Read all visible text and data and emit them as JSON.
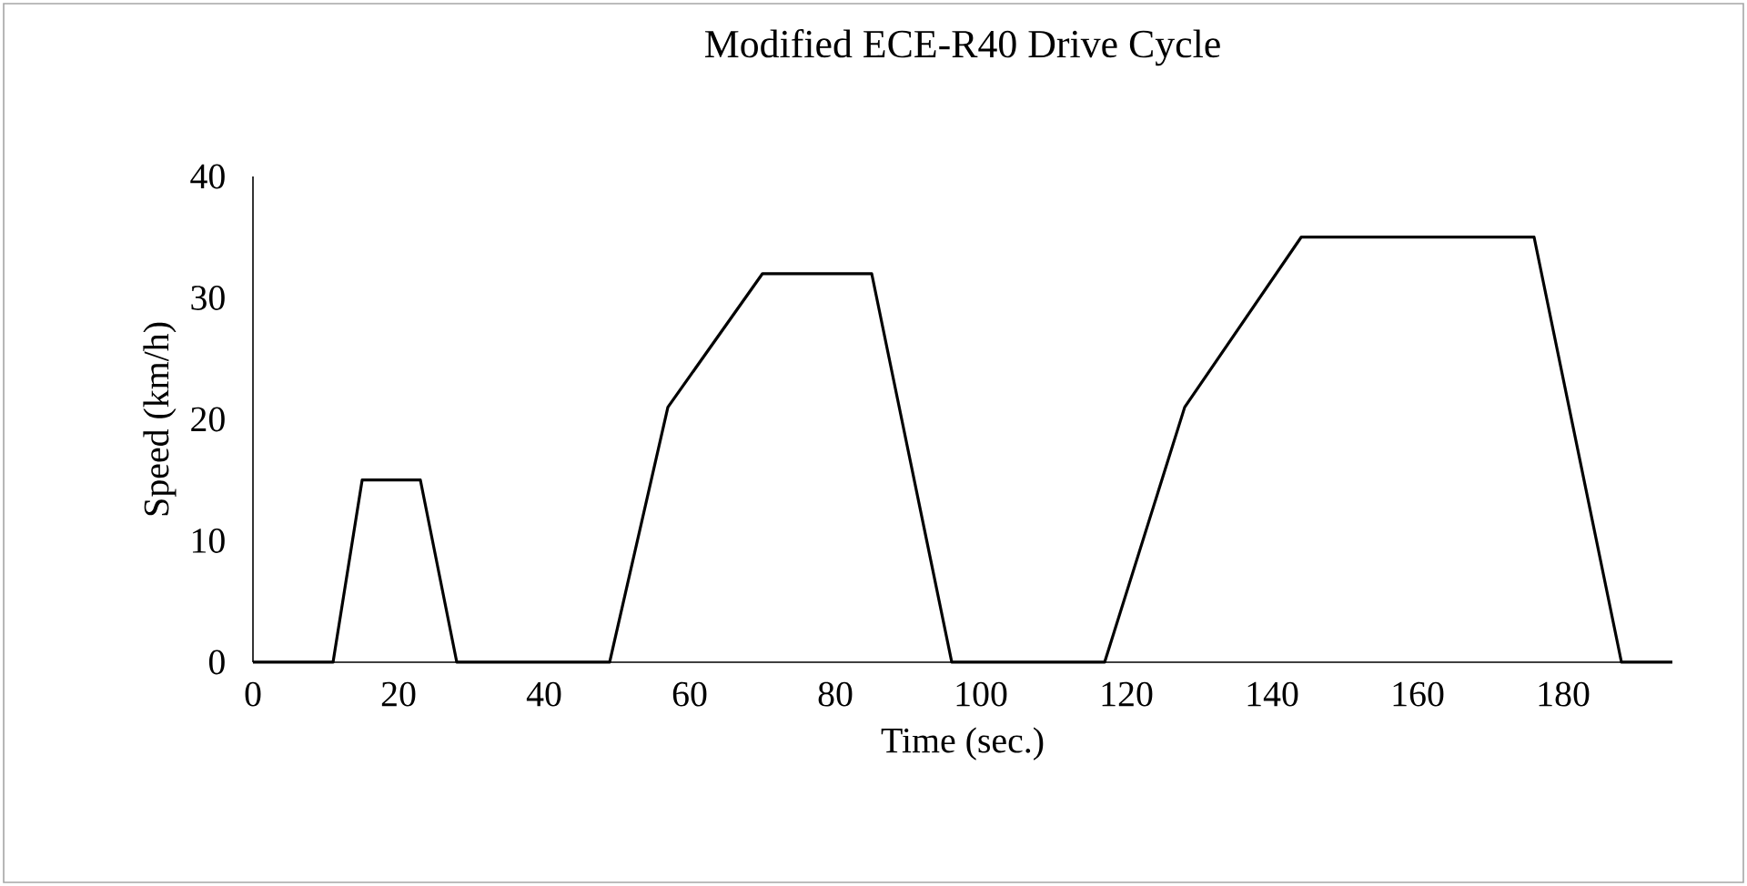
{
  "chart_data": {
    "type": "line",
    "title": "Modified ECE-R40 Drive Cycle",
    "xlabel": "Time (sec.)",
    "ylabel": "Speed (km/h)",
    "x": [
      0,
      11,
      15,
      23,
      28,
      49,
      57,
      70,
      85,
      96,
      117,
      128,
      144,
      176,
      188,
      195
    ],
    "series": [
      {
        "color": "#000000",
        "values": [
          0,
          0,
          15,
          15,
          0,
          0,
          21,
          32,
          32,
          0,
          0,
          21,
          35,
          35,
          0,
          0
        ]
      }
    ],
    "xlim": [
      0,
      195
    ],
    "ylim": [
      0,
      40
    ],
    "xticks": [
      0,
      20,
      40,
      60,
      80,
      100,
      120,
      140,
      160,
      180
    ],
    "yticks": [
      0,
      10,
      20,
      30,
      40
    ],
    "marker": "none",
    "line_style": "solid"
  }
}
